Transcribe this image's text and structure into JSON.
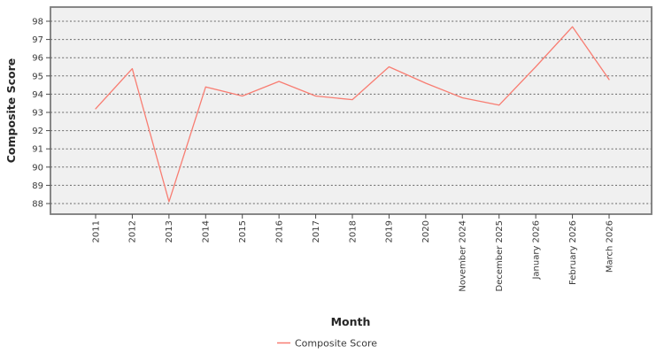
{
  "chart_data": {
    "type": "line",
    "title": "",
    "xlabel": "Month",
    "ylabel": "Composite Score",
    "categories": [
      "2011",
      "2012",
      "2013",
      "2014",
      "2015",
      "2016",
      "2017",
      "2018",
      "2019",
      "2020",
      "November 2024",
      "December 2025",
      "January 2026",
      "February 2026",
      "March 2026"
    ],
    "series": [
      {
        "name": "Composite Score",
        "color": "#f87d72",
        "values": [
          93.2,
          95.4,
          88.1,
          94.4,
          93.9,
          94.7,
          93.9,
          93.7,
          95.5,
          94.6,
          93.8,
          93.4,
          95.5,
          97.7,
          94.8
        ]
      }
    ],
    "yticks": [
      88,
      89,
      90,
      91,
      92,
      93,
      94,
      95,
      96,
      97,
      98
    ],
    "ylim": [
      87.4,
      98.8
    ],
    "grid": "horizontal-dashed",
    "legend_position": "bottom-center",
    "x_tick_rotation_deg": 90
  },
  "style": {
    "panel_background": "#f0f0f0",
    "panel_border": "#7a7a7a",
    "grid_color": "#666666",
    "tick_color": "#4a4a4a",
    "figure_background": "#ffffff"
  },
  "legend": {
    "label": "Composite Score"
  }
}
